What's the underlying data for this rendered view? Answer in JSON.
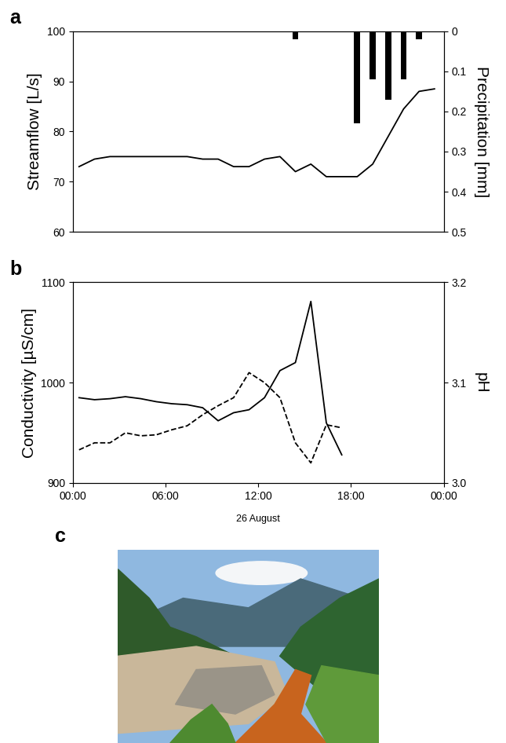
{
  "chart_data": [
    {
      "type": "line",
      "label": "a",
      "y_label": "Streamflow [L/s]",
      "y2_label": "Precipitation [mm]",
      "xlim": [
        0,
        24
      ],
      "ylim": [
        60,
        100
      ],
      "yticks": [
        60,
        70,
        80,
        90,
        100
      ],
      "y2lim": [
        0.5,
        0
      ],
      "y2ticks": [
        0,
        0.1,
        0.2,
        0.3,
        0.4,
        0.5
      ],
      "tick_labels": "y",
      "series": [
        {
          "type": "line",
          "color": "#000000",
          "line_style": "solid",
          "x": [
            0.4,
            1.4,
            2.4,
            3.4,
            4.4,
            5.4,
            6.4,
            7.4,
            8.4,
            9.4,
            10.4,
            11.4,
            12.4,
            13.4,
            14.4,
            15.4,
            16.4,
            17.4,
            18.4,
            19.4,
            20.4,
            21.4,
            22.4,
            23.4
          ],
          "values": [
            73,
            74.5,
            75,
            75,
            75,
            75,
            75,
            75,
            74.5,
            74.5,
            73,
            73,
            74.5,
            75,
            72,
            73.5,
            71,
            71,
            71,
            73.5,
            79,
            84.5,
            88,
            88.5
          ]
        },
        {
          "type": "bar",
          "color": "#000000",
          "axis": "y2",
          "x": [
            14.4,
            18.4,
            19.4,
            20.4,
            21.4,
            22.4
          ],
          "values": [
            0.02,
            0.23,
            0.12,
            0.17,
            0.12,
            0.02
          ]
        }
      ]
    },
    {
      "type": "line",
      "label": "b",
      "x_label": "26 August",
      "y_label": "Conductivity [µS/cm]",
      "y2_label": "pH",
      "xlim": [
        0,
        24
      ],
      "xticks": [
        {
          "value": 0,
          "label": "00:00"
        },
        {
          "value": 6,
          "label": "06:00"
        },
        {
          "value": 12,
          "label": "12:00"
        },
        {
          "value": 18,
          "label": "18:00"
        },
        {
          "value": 24,
          "label": "00:00"
        }
      ],
      "ylim": [
        900,
        1100
      ],
      "yticks": [
        900,
        1000,
        1100
      ],
      "y2lim": [
        3.0,
        3.2
      ],
      "y2ticks": [
        {
          "value": 3.0,
          "label": "3.0"
        },
        {
          "value": 3.1,
          "label": "3.1"
        },
        {
          "value": 3.2,
          "label": "3.2"
        }
      ],
      "series": [
        {
          "type": "line",
          "color": "#000000",
          "line_style": "solid",
          "x": [
            0.4,
            1.4,
            2.4,
            3.4,
            4.4,
            5.4,
            6.4,
            7.4,
            8.4,
            9.4,
            10.4,
            11.4,
            12.4,
            13.4,
            14.4,
            15.4,
            16.4,
            17.4
          ],
          "values": [
            985,
            983,
            984,
            986,
            984,
            981,
            979,
            978,
            975,
            962,
            970,
            973,
            985,
            1012,
            1020,
            1081,
            960,
            928
          ]
        },
        {
          "type": "line",
          "color": "#000000",
          "line_style": "dashed",
          "axis": "y2",
          "x": [
            0.4,
            1.4,
            2.4,
            3.4,
            4.4,
            5.4,
            6.4,
            7.4,
            8.4,
            9.4,
            10.4,
            11.4,
            12.4,
            13.4,
            14.4,
            15.4,
            16.4,
            17.4
          ],
          "values": [
            3.033,
            3.04,
            3.04,
            3.05,
            3.047,
            3.048,
            3.053,
            3.057,
            3.068,
            3.077,
            3.085,
            3.11,
            3.1,
            3.085,
            3.04,
            3.02,
            3.058,
            3.055
          ]
        }
      ]
    },
    {
      "type": "image",
      "label": "c"
    }
  ]
}
